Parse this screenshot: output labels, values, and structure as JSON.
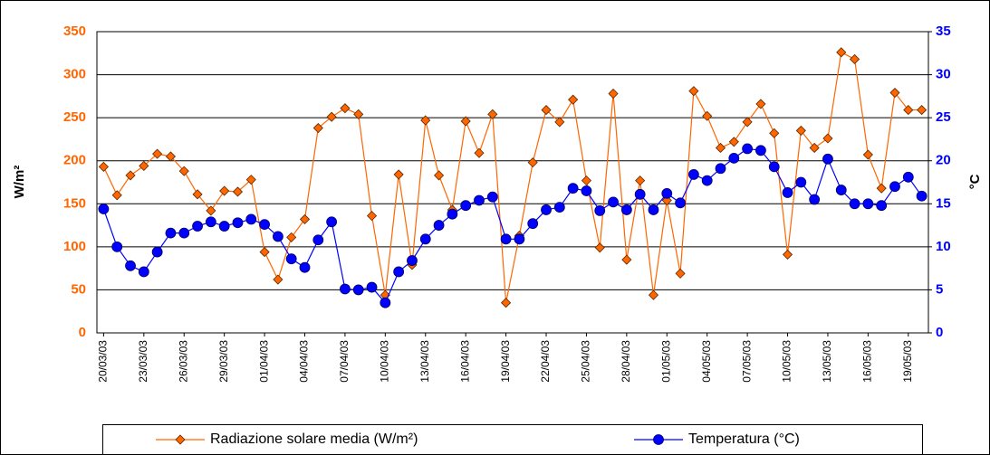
{
  "chart_data": {
    "type": "line",
    "categories": [
      "20/03/03",
      null,
      null,
      "23/03/03",
      null,
      null,
      "26/03/03",
      null,
      null,
      "29/03/03",
      null,
      null,
      "01/04/03",
      null,
      null,
      "04/04/03",
      null,
      null,
      "07/04/03",
      null,
      null,
      "10/04/03",
      null,
      null,
      "13/04/03",
      null,
      null,
      "16/04/03",
      null,
      null,
      "19/04/03",
      null,
      null,
      "22/04/03",
      null,
      null,
      "25/04/03",
      null,
      null,
      "28/04/03",
      null,
      null,
      "01/05/03",
      null,
      null,
      "04/05/03",
      null,
      null,
      "07/05/03",
      null,
      null,
      "10/05/03",
      null,
      null,
      "13/05/03",
      null,
      null,
      "16/05/03",
      null,
      null,
      "19/05/03",
      null
    ],
    "series": [
      {
        "name": "Radiazione solare media (W/m²)",
        "color": "#ff6600",
        "marker": "diamond",
        "values": [
          193,
          160,
          183,
          194,
          208,
          205,
          188,
          161,
          142,
          165,
          164,
          178,
          94,
          62,
          111,
          132,
          238,
          251,
          261,
          254,
          136,
          44,
          184,
          79,
          247,
          183,
          143,
          246,
          209,
          254,
          35,
          113,
          198,
          259,
          245,
          271,
          177,
          99,
          278,
          85,
          177,
          44,
          154,
          69,
          281,
          252,
          215,
          222,
          245,
          266,
          232,
          91,
          235,
          215,
          226,
          326,
          318,
          207,
          168,
          279,
          259,
          259
        ]
      },
      {
        "name": "Temperatura (°C)",
        "color": "#0000ff",
        "marker": "circle",
        "axis": "y2",
        "values": [
          14.4,
          10.0,
          7.8,
          7.1,
          9.4,
          11.6,
          11.6,
          12.4,
          12.9,
          12.4,
          12.8,
          13.2,
          12.6,
          11.2,
          8.6,
          7.6,
          10.8,
          12.9,
          5.1,
          5.0,
          5.3,
          3.5,
          7.1,
          8.4,
          10.9,
          12.5,
          13.8,
          14.8,
          15.4,
          15.8,
          10.9,
          10.9,
          12.7,
          14.3,
          14.6,
          16.8,
          16.5,
          14.2,
          15.2,
          14.3,
          16.1,
          14.3,
          16.2,
          15.1,
          18.4,
          17.7,
          19.1,
          20.3,
          21.4,
          21.2,
          19.3,
          16.3,
          17.5,
          15.5,
          20.2,
          16.6,
          15.0,
          15.0,
          14.8,
          17.0,
          18.1,
          15.9
        ]
      }
    ],
    "ylabel": "W/m²",
    "y2label": "°C",
    "ylim": [
      0,
      350
    ],
    "yticks": [
      0,
      50,
      100,
      150,
      200,
      250,
      300,
      350
    ],
    "y2lim": [
      0,
      35
    ],
    "y2ticks": [
      0,
      5,
      10,
      15,
      20,
      25,
      30,
      35
    ],
    "grid": true,
    "legend": "bottom"
  }
}
